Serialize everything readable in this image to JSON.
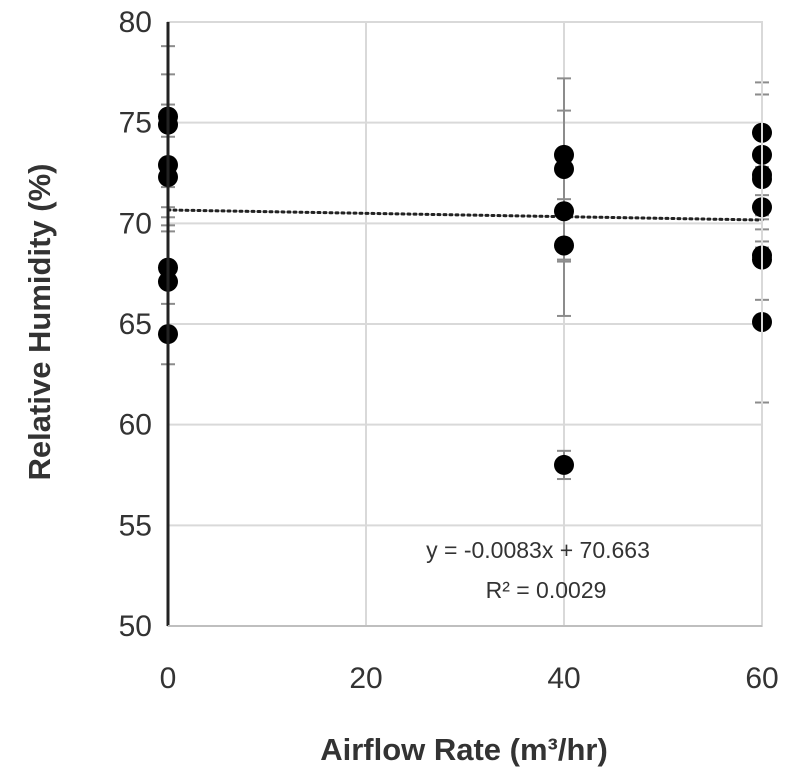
{
  "chart_data": {
    "type": "scatter",
    "xlabel": "Airflow Rate (m³/hr)",
    "ylabel": "Relative Humidity (%)",
    "xlim": [
      0,
      60
    ],
    "ylim": [
      50,
      80
    ],
    "xticks": [
      "0",
      "20",
      "40",
      "60"
    ],
    "yticks": [
      "50",
      "55",
      "60",
      "65",
      "70",
      "75",
      "80"
    ],
    "grid": true,
    "points": [
      {
        "x": 0,
        "y": 75.3,
        "err": 3.5
      },
      {
        "x": 0,
        "y": 74.9,
        "err": 2.5
      },
      {
        "x": 0,
        "y": 72.9,
        "err": 3.0
      },
      {
        "x": 0,
        "y": 72.3,
        "err": 2.0
      },
      {
        "x": 0,
        "y": 67.8,
        "err": 3.0
      },
      {
        "x": 0,
        "y": 67.1,
        "err": 2.5
      },
      {
        "x": 0,
        "y": 64.5,
        "err": 1.5
      },
      {
        "x": 40,
        "y": 73.4,
        "err": 2.2
      },
      {
        "x": 40,
        "y": 72.7,
        "err": 4.5
      },
      {
        "x": 40,
        "y": 70.6,
        "err": 2.5
      },
      {
        "x": 40,
        "y": 68.9,
        "err": 3.5
      },
      {
        "x": 40,
        "y": 58.0,
        "err": 0.7
      },
      {
        "x": 60,
        "y": 74.5,
        "err": 2.5
      },
      {
        "x": 60,
        "y": 73.4,
        "err": 3.0
      },
      {
        "x": 60,
        "y": 72.4,
        "err": 4.0
      },
      {
        "x": 60,
        "y": 72.2,
        "err": 2.5
      },
      {
        "x": 60,
        "y": 70.8,
        "err": 2.0
      },
      {
        "x": 60,
        "y": 68.4,
        "err": 3.0
      },
      {
        "x": 60,
        "y": 68.2,
        "err": 2.0
      },
      {
        "x": 60,
        "y": 65.1,
        "err": 4.0
      }
    ],
    "trendline": {
      "slope": -0.0083,
      "intercept": 70.663,
      "style": "dotted"
    },
    "annotations": [
      "y = -0.0083x + 70.663",
      "R² = 0.0029"
    ]
  }
}
